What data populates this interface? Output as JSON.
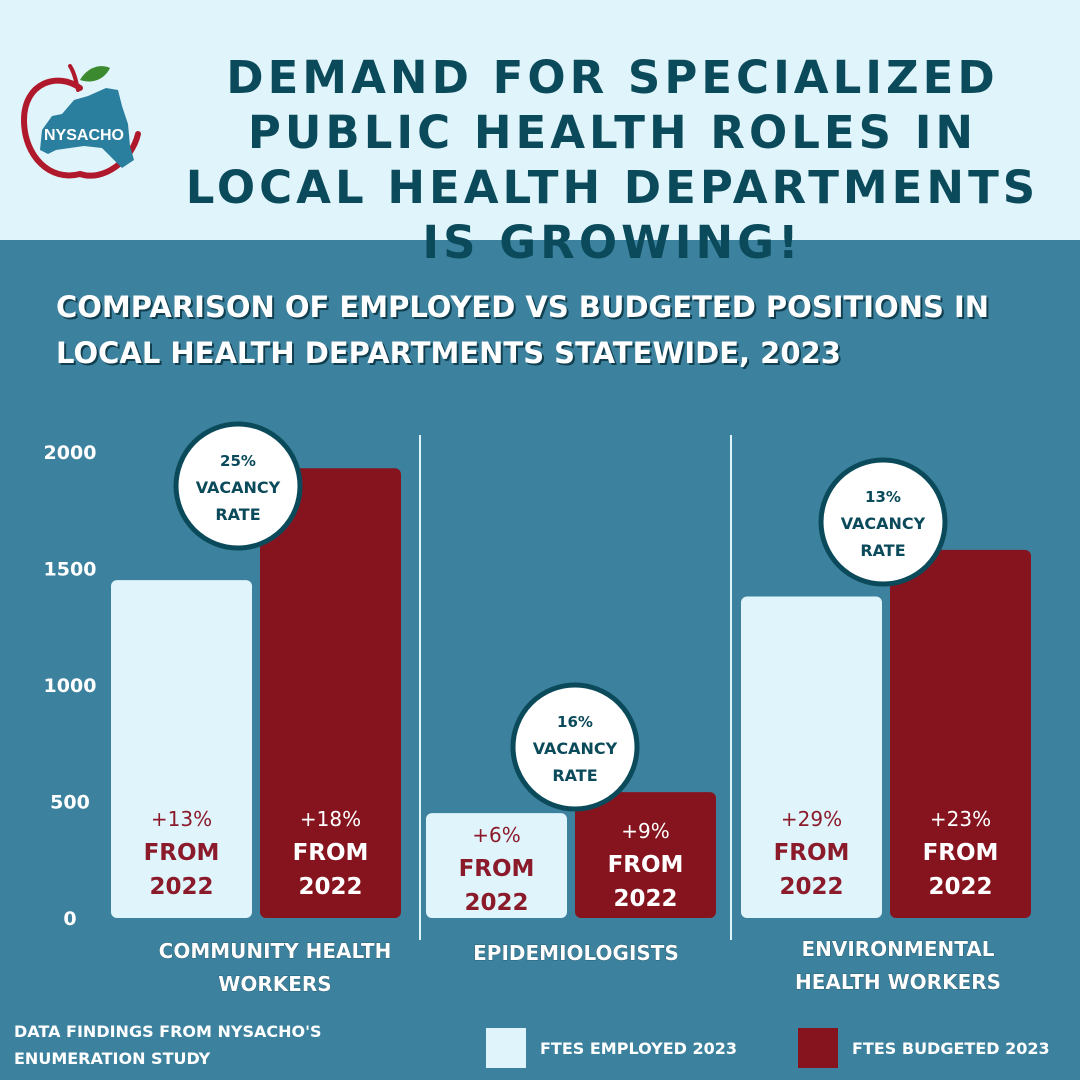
{
  "header": {
    "headline": "Demand for specialized public health roles in local health departments is growing!",
    "logo_text": "NYSACHO"
  },
  "colors": {
    "employed": "#e0f4fb",
    "budgeted": "#86141f",
    "background": "#3c829e",
    "header_bg": "#e0f4fb",
    "headline": "#0b4a5a",
    "pct_employed": "#8b1a2a",
    "pct_budgeted": "#ffffff"
  },
  "chart_data": {
    "type": "bar",
    "title": "Comparison of employed vs budgeted positions in local health departments statewide, 2023",
    "categories": [
      {
        "label": "Community health workers",
        "employed": 1450,
        "budgeted": 1930,
        "employed_change": "+13%",
        "budgeted_change": "+18%",
        "vacancy_pct": "25%"
      },
      {
        "label": "Epidemiologists",
        "employed": 450,
        "budgeted": 540,
        "employed_change": "+6%",
        "budgeted_change": "+9%",
        "vacancy_pct": "16%"
      },
      {
        "label": "Environmental health workers",
        "employed": 1380,
        "budgeted": 1580,
        "employed_change": "+29%",
        "budgeted_change": "+23%",
        "vacancy_pct": "13%"
      }
    ],
    "series": [
      {
        "name": "FTEs Employed 2023",
        "key": "employed"
      },
      {
        "name": "FTEs Budgeted 2023",
        "key": "budgeted"
      }
    ],
    "yticks": [
      0,
      500,
      1000,
      1500,
      2000
    ],
    "ylim": [
      0,
      2000
    ],
    "change_suffix": [
      "FROM",
      "2022"
    ],
    "vacancy_suffix": [
      "VACANCY",
      "RATE"
    ]
  },
  "legend": {
    "employed_label": "FTEs Employed 2023",
    "budgeted_label": "FTEs Budgeted 2023"
  },
  "footnote": "Data findings from NYSACHO's Enumeration Study"
}
